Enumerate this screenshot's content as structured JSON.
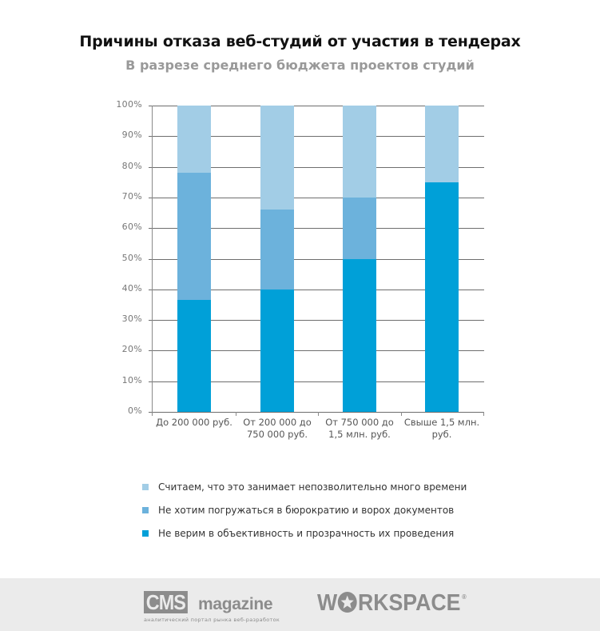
{
  "header": {
    "title": "Причины отказа веб-студий от участия в тендерах",
    "subtitle": "В разрезе среднего бюджета проектов студий"
  },
  "colors": {
    "series_dark": "#00a0d8",
    "series_medium": "#6cb2dc",
    "series_light": "#a2cde6",
    "grid": "#6e6e6e"
  },
  "y_axis": {
    "ticks": [
      "0%",
      "10%",
      "20%",
      "30%",
      "40%",
      "50%",
      "60%",
      "70%",
      "80%",
      "90%",
      "100%"
    ]
  },
  "x_axis": {
    "labels": [
      [
        "До 200 000 руб.",
        ""
      ],
      [
        "От 200 000 до",
        "750 000 руб."
      ],
      [
        "От 750 000 до",
        "1,5 млн. руб."
      ],
      [
        "Свыше 1,5 млн.",
        "руб."
      ]
    ]
  },
  "legend": [
    {
      "label": "Считаем, что это занимает непозволительно много времени",
      "color": "#a2cde6"
    },
    {
      "label": "Не хотим погружаться в бюрократию и ворох документов",
      "color": "#6cb2dc"
    },
    {
      "label": "Не верим в объективность и прозрачность их проведения",
      "color": "#00a0d8"
    }
  ],
  "footer": {
    "cms_logo_box": "CMS",
    "cms_logo_word": "magazine",
    "cms_tagline": "аналитический портал рынка веб-разработок",
    "workspace_logo_prefix": "W",
    "workspace_logo_suffix": "RKSPACE",
    "workspace_reg": "®"
  },
  "chart_data": {
    "type": "bar",
    "stacked": true,
    "percent": true,
    "title": "Причины отказа веб-студий от участия в тендерах",
    "subtitle": "В разрезе среднего бюджета проектов студий",
    "xlabel": "",
    "ylabel": "",
    "ylim": [
      0,
      100
    ],
    "grid": true,
    "legend_position": "bottom",
    "categories": [
      "До 200 000 руб.",
      "От 200 000 до 750 000 руб.",
      "От 750 000 до 1,5 млн. руб.",
      "Свыше 1,5 млн. руб."
    ],
    "series": [
      {
        "name": "Не верим в объективность и прозрачность их проведения",
        "color": "#00a0d8",
        "values": [
          36.5,
          40,
          50,
          75
        ]
      },
      {
        "name": "Не хотим погружаться в бюрократию и ворох документов",
        "color": "#6cb2dc",
        "values": [
          41.5,
          26,
          20,
          0
        ]
      },
      {
        "name": "Считаем, что это занимает непозволительно много времени",
        "color": "#a2cde6",
        "values": [
          22,
          34,
          30,
          25
        ]
      }
    ]
  }
}
